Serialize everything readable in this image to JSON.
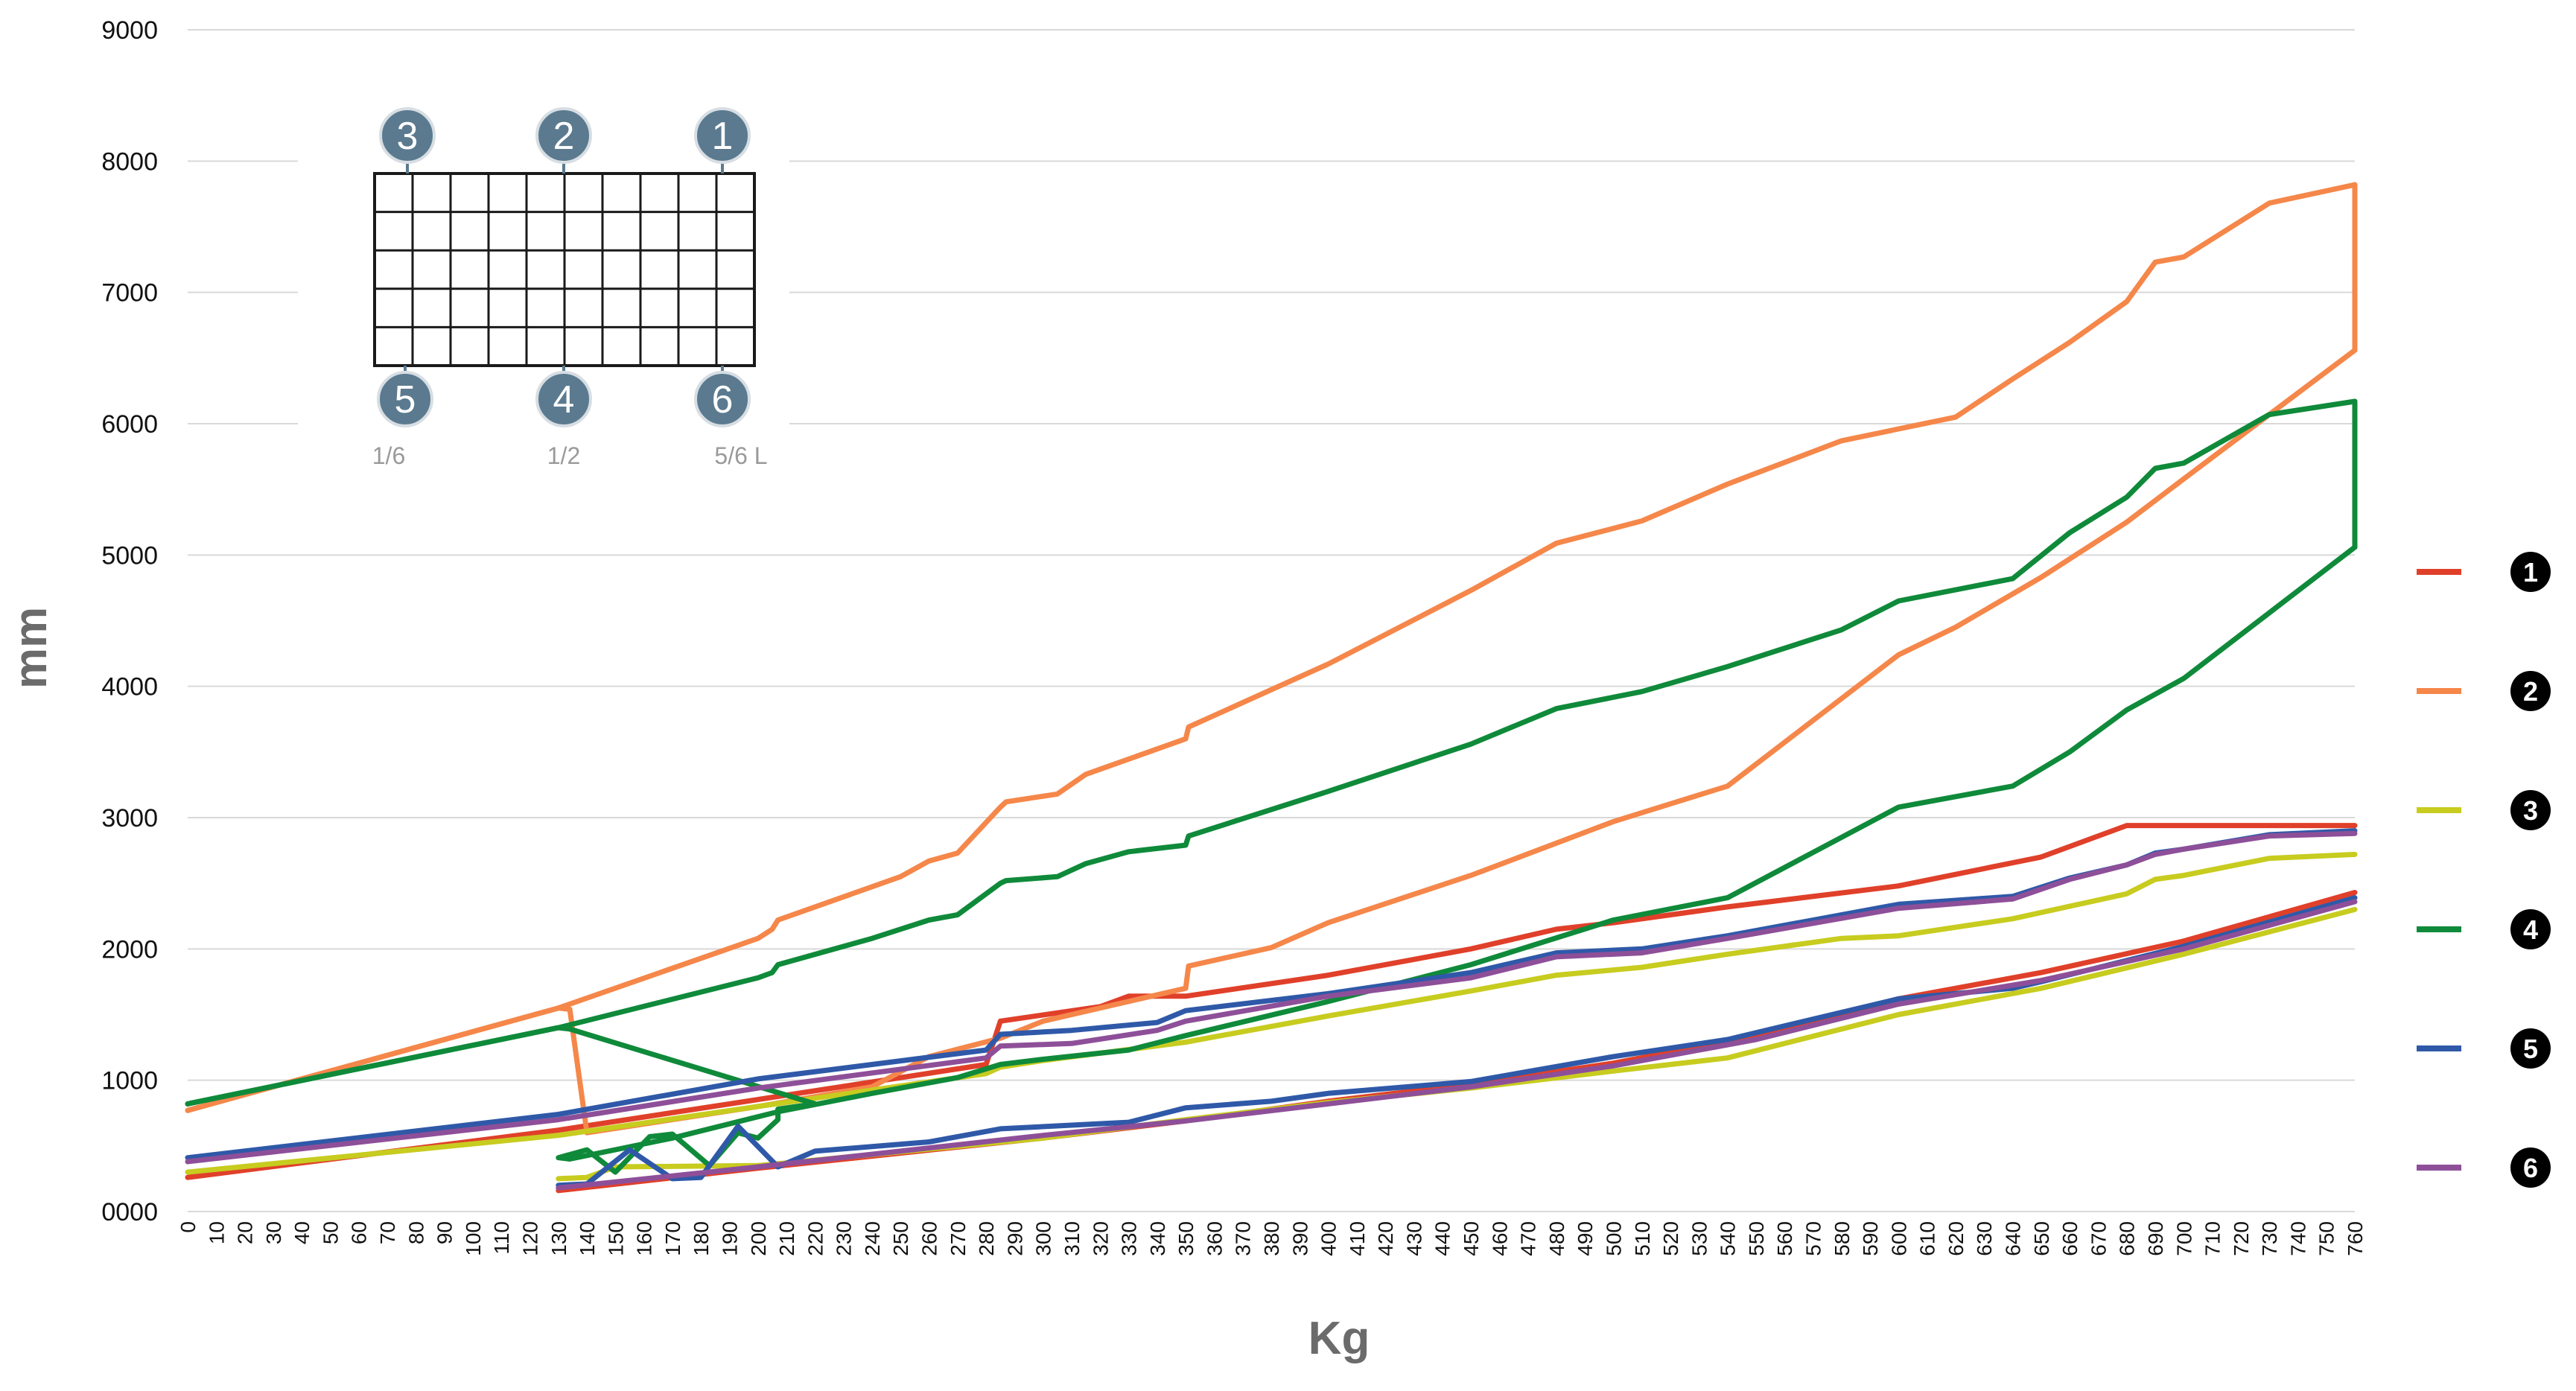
{
  "chart_data": {
    "type": "line",
    "xlabel": "Kg",
    "ylabel": "mm",
    "ylim": [
      0,
      9000
    ],
    "yticks": [
      "0000",
      "1000",
      "2000",
      "3000",
      "4000",
      "5000",
      "6000",
      "7000",
      "8000",
      "9000"
    ],
    "x": [
      0,
      10,
      20,
      30,
      40,
      50,
      60,
      70,
      80,
      90,
      100,
      110,
      120,
      130,
      140,
      150,
      160,
      170,
      180,
      190,
      200,
      210,
      220,
      230,
      240,
      250,
      260,
      270,
      280,
      290,
      300,
      310,
      320,
      330,
      340,
      350,
      360,
      370,
      380,
      390,
      400,
      410,
      420,
      430,
      440,
      450,
      460,
      470,
      480,
      490,
      500,
      510,
      520,
      530,
      540,
      550,
      560,
      570,
      580,
      590,
      600,
      610,
      620,
      630,
      640,
      650,
      660,
      670,
      680,
      690,
      700,
      710,
      720,
      730,
      740,
      750,
      760
    ],
    "x_tick_labels": [
      "0",
      "10",
      "20",
      "30",
      "40",
      "50",
      "60",
      "70",
      "80",
      "90",
      "100",
      "110",
      "120",
      "130",
      "140",
      "150",
      "160",
      "170",
      "180",
      "190",
      "200",
      "210",
      "220",
      "230",
      "240",
      "250",
      "260",
      "270",
      "280",
      "290",
      "300",
      "310",
      "320",
      "330",
      "340",
      "350",
      "360",
      "370",
      "380",
      "390",
      "400",
      "410",
      "420",
      "430",
      "440",
      "450",
      "460",
      "470",
      "480",
      "490",
      "500",
      "510",
      "520",
      "530",
      "540",
      "550",
      "560",
      "570",
      "580",
      "590",
      "600",
      "610",
      "620",
      "630",
      "640",
      "650",
      "660",
      "670",
      "680",
      "690",
      "700",
      "710",
      "720",
      "730",
      "740",
      "750",
      "760"
    ],
    "series": [
      {
        "name": "1",
        "color": "#e0402a",
        "upper": [
          [
            0,
            260
          ],
          [
            130,
            620
          ],
          [
            280,
            1120
          ],
          [
            285,
            1450
          ],
          [
            320,
            1560
          ],
          [
            330,
            1640
          ],
          [
            350,
            1640
          ],
          [
            400,
            1800
          ],
          [
            450,
            2000
          ],
          [
            480,
            2150
          ],
          [
            500,
            2200
          ],
          [
            540,
            2320
          ],
          [
            600,
            2480
          ],
          [
            650,
            2700
          ],
          [
            680,
            2940
          ],
          [
            760,
            2940
          ]
        ],
        "lower": [
          [
            130,
            160
          ],
          [
            200,
            330
          ],
          [
            300,
            560
          ],
          [
            350,
            690
          ],
          [
            400,
            840
          ],
          [
            450,
            970
          ],
          [
            500,
            1130
          ],
          [
            550,
            1340
          ],
          [
            600,
            1620
          ],
          [
            650,
            1820
          ],
          [
            700,
            2060
          ],
          [
            760,
            2430
          ]
        ]
      },
      {
        "name": "2",
        "color": "#f5874a",
        "upper": [
          [
            0,
            770
          ],
          [
            130,
            1550
          ],
          [
            200,
            2080
          ],
          [
            205,
            2150
          ],
          [
            207,
            2220
          ],
          [
            250,
            2550
          ],
          [
            260,
            2670
          ],
          [
            270,
            2730
          ],
          [
            285,
            3080
          ],
          [
            287,
            3120
          ],
          [
            305,
            3180
          ],
          [
            315,
            3330
          ],
          [
            350,
            3600
          ],
          [
            351,
            3690
          ],
          [
            400,
            4170
          ],
          [
            450,
            4730
          ],
          [
            480,
            5090
          ],
          [
            510,
            5260
          ],
          [
            540,
            5540
          ],
          [
            580,
            5870
          ],
          [
            620,
            6050
          ],
          [
            640,
            6340
          ],
          [
            660,
            6620
          ],
          [
            680,
            6930
          ],
          [
            690,
            7230
          ],
          [
            700,
            7270
          ],
          [
            730,
            7680
          ],
          [
            760,
            7820
          ]
        ],
        "lower": [
          [
            0,
            770
          ],
          [
            130,
            1550
          ],
          [
            134,
            1540
          ],
          [
            140,
            600
          ],
          [
            200,
            800
          ],
          [
            240,
            950
          ],
          [
            260,
            1180
          ],
          [
            285,
            1320
          ],
          [
            300,
            1450
          ],
          [
            350,
            1700
          ],
          [
            351,
            1870
          ],
          [
            380,
            2010
          ],
          [
            400,
            2200
          ],
          [
            450,
            2560
          ],
          [
            500,
            2970
          ],
          [
            540,
            3240
          ],
          [
            600,
            4240
          ],
          [
            620,
            4450
          ],
          [
            650,
            4830
          ],
          [
            680,
            5250
          ],
          [
            700,
            5580
          ],
          [
            760,
            6560
          ]
        ],
        "closed": true
      },
      {
        "name": "3",
        "color": "#c7cc1f",
        "upper": [
          [
            0,
            300
          ],
          [
            130,
            580
          ],
          [
            200,
            800
          ],
          [
            280,
            1050
          ],
          [
            285,
            1100
          ],
          [
            300,
            1150
          ],
          [
            350,
            1290
          ],
          [
            400,
            1490
          ],
          [
            450,
            1680
          ],
          [
            480,
            1800
          ],
          [
            510,
            1860
          ],
          [
            540,
            1960
          ],
          [
            580,
            2080
          ],
          [
            600,
            2100
          ],
          [
            640,
            2230
          ],
          [
            680,
            2420
          ],
          [
            690,
            2530
          ],
          [
            700,
            2560
          ],
          [
            730,
            2690
          ],
          [
            760,
            2720
          ]
        ],
        "lower": [
          [
            130,
            250
          ],
          [
            140,
            260
          ],
          [
            150,
            340
          ],
          [
            200,
            350
          ],
          [
            300,
            560
          ],
          [
            350,
            700
          ],
          [
            400,
            830
          ],
          [
            450,
            940
          ],
          [
            500,
            1070
          ],
          [
            540,
            1170
          ],
          [
            600,
            1500
          ],
          [
            650,
            1700
          ],
          [
            700,
            1960
          ],
          [
            760,
            2300
          ]
        ]
      },
      {
        "name": "4",
        "color": "#0f8a3a",
        "upper": [
          [
            0,
            820
          ],
          [
            130,
            1400
          ],
          [
            200,
            1780
          ],
          [
            205,
            1820
          ],
          [
            207,
            1880
          ],
          [
            240,
            2080
          ],
          [
            260,
            2220
          ],
          [
            270,
            2260
          ],
          [
            285,
            2500
          ],
          [
            287,
            2520
          ],
          [
            305,
            2550
          ],
          [
            315,
            2650
          ],
          [
            330,
            2740
          ],
          [
            350,
            2790
          ],
          [
            351,
            2860
          ],
          [
            400,
            3200
          ],
          [
            450,
            3560
          ],
          [
            480,
            3830
          ],
          [
            510,
            3960
          ],
          [
            540,
            4150
          ],
          [
            580,
            4430
          ],
          [
            600,
            4650
          ],
          [
            640,
            4820
          ],
          [
            660,
            5170
          ],
          [
            680,
            5440
          ],
          [
            690,
            5660
          ],
          [
            700,
            5700
          ],
          [
            730,
            6070
          ],
          [
            760,
            6170
          ]
        ],
        "lower": [
          [
            0,
            820
          ],
          [
            130,
            1400
          ],
          [
            134,
            1390
          ],
          [
            220,
            820
          ],
          [
            207,
            780
          ],
          [
            207,
            700
          ],
          [
            200,
            560
          ],
          [
            193,
            600
          ],
          [
            183,
            350
          ],
          [
            170,
            590
          ],
          [
            162,
            570
          ],
          [
            150,
            300
          ],
          [
            140,
            470
          ],
          [
            130,
            410
          ],
          [
            134,
            400
          ],
          [
            170,
            560
          ],
          [
            207,
            760
          ],
          [
            240,
            900
          ],
          [
            270,
            1020
          ],
          [
            285,
            1120
          ],
          [
            300,
            1160
          ],
          [
            330,
            1230
          ],
          [
            350,
            1340
          ],
          [
            400,
            1600
          ],
          [
            450,
            1880
          ],
          [
            500,
            2220
          ],
          [
            540,
            2390
          ],
          [
            600,
            3080
          ],
          [
            640,
            3240
          ],
          [
            660,
            3500
          ],
          [
            680,
            3820
          ],
          [
            700,
            4060
          ],
          [
            760,
            5060
          ]
        ],
        "closed": true
      },
      {
        "name": "5",
        "color": "#2f59a8",
        "upper": [
          [
            0,
            410
          ],
          [
            130,
            740
          ],
          [
            200,
            1010
          ],
          [
            280,
            1230
          ],
          [
            285,
            1350
          ],
          [
            310,
            1380
          ],
          [
            340,
            1440
          ],
          [
            350,
            1530
          ],
          [
            400,
            1660
          ],
          [
            450,
            1820
          ],
          [
            480,
            1970
          ],
          [
            510,
            2000
          ],
          [
            540,
            2100
          ],
          [
            600,
            2340
          ],
          [
            640,
            2400
          ],
          [
            660,
            2540
          ],
          [
            680,
            2640
          ],
          [
            690,
            2730
          ],
          [
            700,
            2760
          ],
          [
            730,
            2870
          ],
          [
            760,
            2900
          ]
        ],
        "lower": [
          [
            130,
            200
          ],
          [
            140,
            210
          ],
          [
            155,
            470
          ],
          [
            170,
            250
          ],
          [
            180,
            260
          ],
          [
            193,
            650
          ],
          [
            207,
            340
          ],
          [
            220,
            460
          ],
          [
            260,
            530
          ],
          [
            285,
            630
          ],
          [
            330,
            680
          ],
          [
            350,
            790
          ],
          [
            380,
            840
          ],
          [
            400,
            900
          ],
          [
            450,
            990
          ],
          [
            500,
            1180
          ],
          [
            540,
            1310
          ],
          [
            600,
            1620
          ],
          [
            640,
            1700
          ],
          [
            650,
            1750
          ],
          [
            700,
            2020
          ],
          [
            760,
            2390
          ]
        ]
      },
      {
        "name": "6",
        "color": "#8e4f99",
        "upper": [
          [
            0,
            380
          ],
          [
            130,
            700
          ],
          [
            200,
            940
          ],
          [
            280,
            1170
          ],
          [
            285,
            1260
          ],
          [
            310,
            1280
          ],
          [
            340,
            1380
          ],
          [
            350,
            1450
          ],
          [
            400,
            1640
          ],
          [
            450,
            1780
          ],
          [
            480,
            1940
          ],
          [
            510,
            1970
          ],
          [
            540,
            2080
          ],
          [
            600,
            2310
          ],
          [
            640,
            2380
          ],
          [
            660,
            2530
          ],
          [
            680,
            2640
          ],
          [
            690,
            2720
          ],
          [
            700,
            2760
          ],
          [
            730,
            2860
          ],
          [
            760,
            2880
          ]
        ],
        "lower": [
          [
            130,
            180
          ],
          [
            200,
            340
          ],
          [
            300,
            580
          ],
          [
            350,
            690
          ],
          [
            400,
            820
          ],
          [
            450,
            950
          ],
          [
            500,
            1110
          ],
          [
            550,
            1310
          ],
          [
            600,
            1580
          ],
          [
            650,
            1760
          ],
          [
            700,
            2000
          ],
          [
            760,
            2360
          ]
        ]
      }
    ],
    "legend": {
      "placement": "right",
      "entries": [
        "1",
        "2",
        "3",
        "4",
        "5",
        "6"
      ]
    },
    "grid": true,
    "grid_color": "#d9d9d9",
    "inset": {
      "top_markers": [
        "3",
        "2",
        "1"
      ],
      "bottom_markers": [
        "5",
        "4",
        "6"
      ],
      "position_labels": [
        "1/6",
        "1/2",
        "5/6 L"
      ],
      "marker_color": "#5b7a8f"
    }
  }
}
